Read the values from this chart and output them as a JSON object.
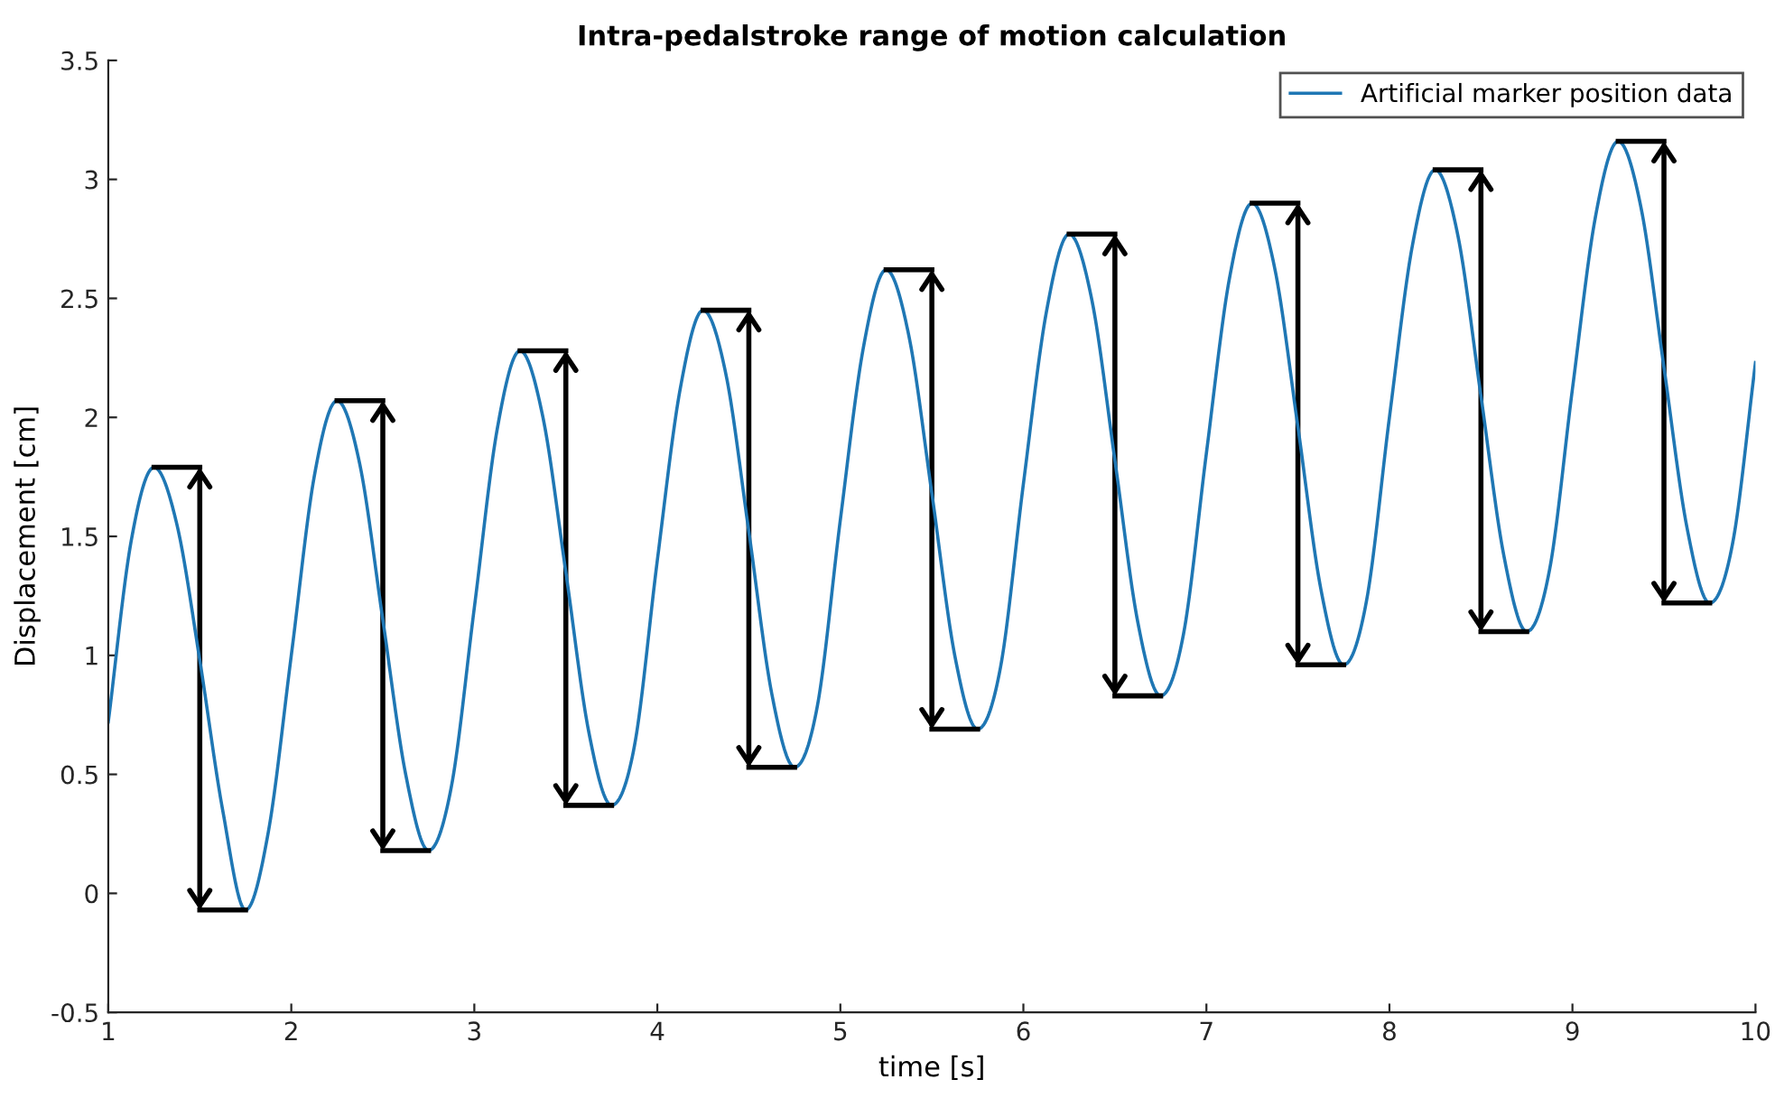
{
  "chart_data": {
    "type": "line",
    "title": "Intra-pedalstroke range of motion calculation",
    "xlabel": "time [s]",
    "ylabel": "Displacement [cm]",
    "xlim": [
      1,
      10
    ],
    "ylim": [
      -0.5,
      3.5
    ],
    "xticks": [
      1,
      2,
      3,
      4,
      5,
      6,
      7,
      8,
      9,
      10
    ],
    "yticks": [
      {
        "value": -0.5,
        "label": "-0.5"
      },
      0,
      0.5,
      1,
      1.5,
      2,
      2.5,
      3,
      3.5
    ],
    "grid": false,
    "legend": "top right",
    "marker": "none",
    "line_style": "solid",
    "series": [
      {
        "name": "Artificial marker position data",
        "color": "#1f77b4",
        "x": [
          1.0,
          1.125,
          1.25,
          1.375,
          1.5,
          1.625,
          1.75,
          1.875,
          2.0,
          2.125,
          2.25,
          2.375,
          2.5,
          2.625,
          2.75,
          2.875,
          3.0,
          3.125,
          3.25,
          3.375,
          3.5,
          3.625,
          3.75,
          3.875,
          4.0,
          4.125,
          4.25,
          4.375,
          4.5,
          4.625,
          4.75,
          4.875,
          5.0,
          5.125,
          5.25,
          5.375,
          5.5,
          5.625,
          5.75,
          5.875,
          6.0,
          6.125,
          6.25,
          6.375,
          6.5,
          6.625,
          6.75,
          6.875,
          7.0,
          7.125,
          7.25,
          7.375,
          7.5,
          7.625,
          7.75,
          7.875,
          8.0,
          8.125,
          8.25,
          8.375,
          8.5,
          8.625,
          8.75,
          8.875,
          9.0,
          9.125,
          9.25,
          9.375,
          9.5,
          9.625,
          9.75,
          9.875,
          10.0
        ],
        "values": [
          0.72,
          1.48,
          1.79,
          1.55,
          0.98,
          0.35,
          -0.07,
          0.26,
          1.0,
          1.75,
          2.07,
          1.8,
          1.15,
          0.5,
          0.18,
          0.45,
          1.2,
          1.95,
          2.28,
          2.0,
          1.35,
          0.68,
          0.37,
          0.62,
          1.4,
          2.12,
          2.45,
          2.18,
          1.52,
          0.84,
          0.53,
          0.79,
          1.57,
          2.29,
          2.62,
          2.34,
          1.68,
          1.0,
          0.69,
          0.95,
          1.72,
          2.44,
          2.77,
          2.49,
          1.82,
          1.14,
          0.83,
          1.09,
          1.85,
          2.58,
          2.9,
          2.62,
          1.96,
          1.28,
          0.96,
          1.23,
          2.0,
          2.72,
          3.04,
          2.76,
          2.09,
          1.42,
          1.1,
          1.36,
          2.12,
          2.84,
          3.16,
          2.88,
          2.21,
          1.54,
          1.22,
          1.47,
          2.23
        ]
      }
    ]
  }
}
